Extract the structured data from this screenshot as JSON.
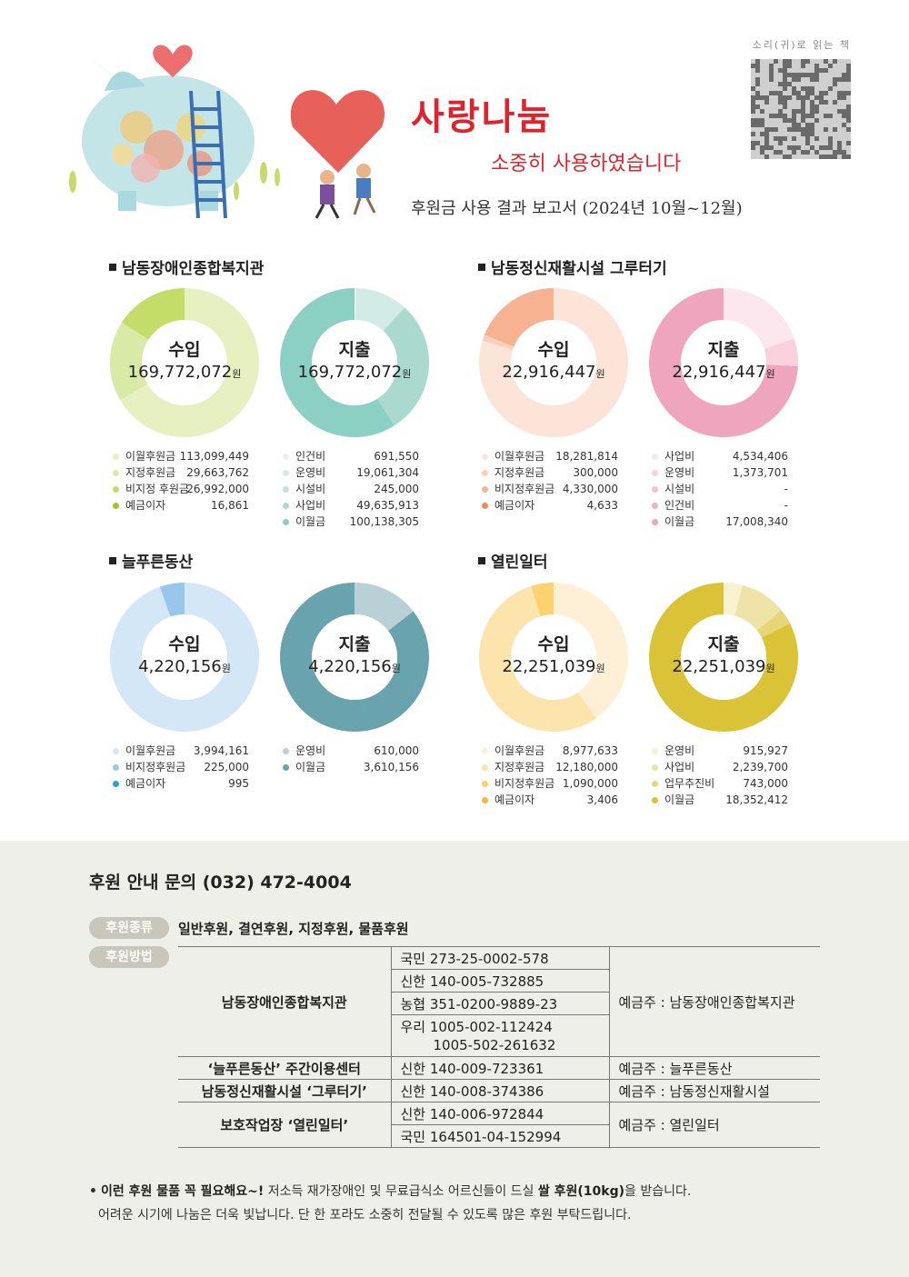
{
  "header": {
    "title": "사랑나눔",
    "subtitle": "소중히 사용하였습니다",
    "report": "후원금 사용 결과 보고서 (2024년 10월~12월)",
    "qr_caption": "소리(귀)로 읽는 책"
  },
  "colors": {
    "title": "#e0232a",
    "panel_bg": "#efefe9",
    "pill": "#c9c6bb"
  },
  "sections": [
    {
      "name": "남동장애인종합복지관",
      "charts": [
        {
          "type": "pie",
          "label": "수입",
          "total": "169,772,072",
          "unit": "원",
          "items": [
            {
              "name": "이월후원금",
              "display": "113,099,449",
              "value": 113099449,
              "color": "#e7f0c0"
            },
            {
              "name": "지정후원금",
              "display": "29,663,762",
              "value": 29663762,
              "color": "#d9e9a6"
            },
            {
              "name": "비지정 후원금",
              "display": "26,992,000",
              "value": 26992000,
              "color": "#c4dd68"
            },
            {
              "name": "예금이자",
              "display": "16,861",
              "value": 16861,
              "color": "#9ec820"
            }
          ]
        },
        {
          "type": "pie",
          "label": "지출",
          "total": "169,772,072",
          "unit": "원",
          "items": [
            {
              "name": "인건비",
              "display": "691,550",
              "value": 691550,
              "color": "#e6f3f1"
            },
            {
              "name": "운영비",
              "display": "19,061,304",
              "value": 19061304,
              "color": "#d2ebe6"
            },
            {
              "name": "시설비",
              "display": "245,000",
              "value": 245000,
              "color": "#bfe2dc"
            },
            {
              "name": "사업비",
              "display": "49,635,913",
              "value": 49635913,
              "color": "#aad9d0"
            },
            {
              "name": "이월금",
              "display": "100,138,305",
              "value": 100138305,
              "color": "#8ccfc3"
            }
          ]
        }
      ]
    },
    {
      "name": "남동정신재활시설 그루터기",
      "charts": [
        {
          "type": "pie",
          "label": "수입",
          "total": "22,916,447",
          "unit": "원",
          "items": [
            {
              "name": "이월후원금",
              "display": "18,281,814",
              "value": 18281814,
              "color": "#fde4d8"
            },
            {
              "name": "지정후원금",
              "display": "300,000",
              "value": 300000,
              "color": "#fbd0bb"
            },
            {
              "name": "비지정후원금",
              "display": "4,330,000",
              "value": 4330000,
              "color": "#f6b291"
            },
            {
              "name": "예금이자",
              "display": "4,633",
              "value": 4633,
              "color": "#ef8a5b"
            }
          ]
        },
        {
          "type": "pie",
          "label": "지출",
          "total": "22,916,447",
          "unit": "원",
          "items": [
            {
              "name": "사업비",
              "display": "4,534,406",
              "value": 4534406,
              "color": "#fde7ee"
            },
            {
              "name": "운영비",
              "display": "1,373,701",
              "value": 1373701,
              "color": "#f9d2de"
            },
            {
              "name": "시설비",
              "display": "-",
              "value": 0,
              "color": "#f5bfd0"
            },
            {
              "name": "인건비",
              "display": "-",
              "value": 0,
              "color": "#f2b1c5"
            },
            {
              "name": "이월금",
              "display": "17,008,340",
              "value": 17008340,
              "color": "#eea5bd"
            }
          ]
        }
      ]
    },
    {
      "name": "늘푸른동산",
      "charts": [
        {
          "type": "pie",
          "label": "수입",
          "total": "4,220,156",
          "unit": "원",
          "items": [
            {
              "name": "이월후원금",
              "display": "3,994,161",
              "value": 3994161,
              "color": "#d4e7f6"
            },
            {
              "name": "비지정후원금",
              "display": "225,000",
              "value": 225000,
              "color": "#97c8ec"
            },
            {
              "name": "예금이자",
              "display": "995",
              "value": 995,
              "color": "#2ba0dc"
            }
          ]
        },
        {
          "type": "pie",
          "label": "지출",
          "total": "4,220,156",
          "unit": "원",
          "items": [
            {
              "name": "운영비",
              "display": "610,000",
              "value": 610000,
              "color": "#b9d0d6"
            },
            {
              "name": "이월금",
              "display": "3,610,156",
              "value": 3610156,
              "color": "#69a3ad"
            }
          ]
        }
      ]
    },
    {
      "name": "열린일터",
      "charts": [
        {
          "type": "pie",
          "label": "수입",
          "total": "22,251,039",
          "unit": "원",
          "items": [
            {
              "name": "이월후원금",
              "display": "8,977,633",
              "value": 8977633,
              "color": "#fef0d6"
            },
            {
              "name": "지정후원금",
              "display": "12,180,000",
              "value": 12180000,
              "color": "#fde4ac"
            },
            {
              "name": "비지정후원금",
              "display": "1,090,000",
              "value": 1090000,
              "color": "#fcd270"
            },
            {
              "name": "예금이자",
              "display": "3,406",
              "value": 3406,
              "color": "#f9b92c"
            }
          ]
        },
        {
          "type": "pie",
          "label": "지출",
          "total": "22,251,039",
          "unit": "원",
          "items": [
            {
              "name": "운영비",
              "display": "915,927",
              "value": 915927,
              "color": "#f8f2d3"
            },
            {
              "name": "사업비",
              "display": "2,239,700",
              "value": 2239700,
              "color": "#efe4a8"
            },
            {
              "name": "업무추진비",
              "display": "743,000",
              "value": 743000,
              "color": "#e7d676"
            },
            {
              "name": "이월금",
              "display": "18,352,412",
              "value": 18352412,
              "color": "#dbc337"
            }
          ]
        }
      ]
    }
  ],
  "sponsor": {
    "inquiry": "후원 안내 문의 (032) 472-4004",
    "type_label": "후원종류",
    "types": "일반후원, 결연후원, 지정후원, 물품후원",
    "method_label": "후원방법",
    "accounts": {
      "org1": "남동장애인종합복지관",
      "org1_banks": [
        "국민 273-25-0002-578",
        "신한 140-005-732885",
        "농협 351-0200-9889-23",
        "우리 1005-002-112424",
        "1005-502-261632"
      ],
      "org1_holder": "예금주 : 남동장애인종합복지관",
      "org2": "‘늘푸른동산’ 주간이용센터",
      "org2_bank": "신한 140-009-723361",
      "org2_holder": "예금주 : 늘푸른동산",
      "org3": "남동정신재활시설 ‘그루터기’",
      "org3_bank": "신한 140-008-374386",
      "org3_holder": "예금주 : 남동정신재활시설",
      "org4": "보호작업장 ‘열린일터’",
      "org4_banks": [
        "신한 140-006-972844",
        "국민 164501-04-152994"
      ],
      "org4_holder": "예금주 : 열린일터"
    },
    "notice": {
      "bullet": "•",
      "bold1": "이런 후원 물품 꼭 필요해요~!",
      "text1": " 저소득 재가장애인 및 무료급식소 어르신들이 드실 ",
      "bold2": "쌀 후원(10kg)",
      "text2": "을 받습니다.",
      "line2": "어려운 시기에 나눔은 더욱 빛납니다. 단 한 포라도 소중히 전달될 수 있도록 많은 후원 부탁드립니다."
    }
  }
}
